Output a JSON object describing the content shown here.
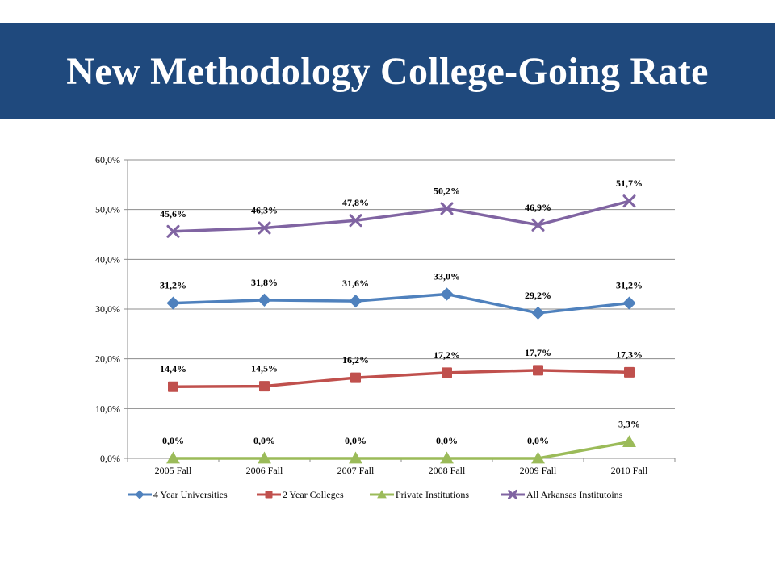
{
  "slide": {
    "title": "New Methodology College-Going Rate"
  },
  "chart_data": {
    "type": "line",
    "categories": [
      "2005 Fall",
      "2006 Fall",
      "2007 Fall",
      "2008 Fall",
      "2009 Fall",
      "2010 Fall"
    ],
    "ylim": [
      0,
      60
    ],
    "yticks": [
      0,
      10,
      20,
      30,
      40,
      50,
      60
    ],
    "ytick_labels": [
      "0,0%",
      "10,0%",
      "20,0%",
      "30,0%",
      "40,0%",
      "50,0%",
      "60,0%"
    ],
    "grid": true,
    "legend_position": "bottom",
    "series": [
      {
        "name": "4 Year Universities",
        "color": "#4f81bd",
        "marker": "diamond",
        "values": [
          31.2,
          31.8,
          31.6,
          33.0,
          29.2,
          31.2
        ],
        "labels": [
          "31,2%",
          "31,8%",
          "31,6%",
          "33,0%",
          "29,2%",
          "31,2%"
        ]
      },
      {
        "name": "2 Year Colleges",
        "color": "#c0504d",
        "marker": "square",
        "values": [
          14.4,
          14.5,
          16.2,
          17.2,
          17.7,
          17.3
        ],
        "labels": [
          "14,4%",
          "14,5%",
          "16,2%",
          "17,2%",
          "17,7%",
          "17,3%"
        ]
      },
      {
        "name": "Private Institutions",
        "color": "#9bbb59",
        "marker": "triangle",
        "values": [
          0.0,
          0.0,
          0.0,
          0.0,
          0.0,
          3.3
        ],
        "labels": [
          "0,0%",
          "0,0%",
          "0,0%",
          "0,0%",
          "0,0%",
          "3,3%"
        ]
      },
      {
        "name": "All Arkansas Institutoins",
        "color": "#8064a2",
        "marker": "x",
        "values": [
          45.6,
          46.3,
          47.8,
          50.2,
          46.9,
          51.7
        ],
        "labels": [
          "45,6%",
          "46,3%",
          "47,8%",
          "50,2%",
          "46,9%",
          "51,7%"
        ]
      }
    ]
  }
}
